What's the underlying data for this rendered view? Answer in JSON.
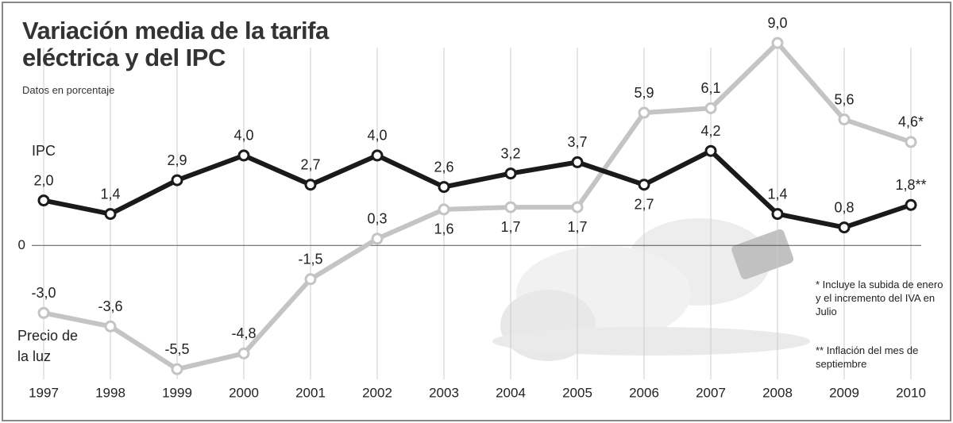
{
  "chart_data": {
    "type": "line",
    "title": "Variación media de la tarifa eléctrica y del IPC",
    "subtitle": "Datos en porcentaje",
    "categories": [
      "1997",
      "1998",
      "1999",
      "2000",
      "2001",
      "2002",
      "2003",
      "2004",
      "2005",
      "2006",
      "2007",
      "2008",
      "2009",
      "2010"
    ],
    "series": [
      {
        "name": "IPC",
        "color": "#1a1a1a",
        "values": [
          2.0,
          1.4,
          2.9,
          4.0,
          2.7,
          4.0,
          2.6,
          3.2,
          3.7,
          2.7,
          4.2,
          1.4,
          0.8,
          1.8
        ],
        "value_labels": [
          "2,0",
          "1,4",
          "2,9",
          "4,0",
          "2,7",
          "4,0",
          "2,6",
          "3,2",
          "3,7",
          "2,7",
          "4,2",
          "1,4",
          "0,8",
          "1,8**"
        ]
      },
      {
        "name": "Precio de la luz",
        "color": "#c4c4c4",
        "values": [
          -3.0,
          -3.6,
          -5.5,
          -4.8,
          -1.5,
          0.3,
          1.6,
          1.7,
          1.7,
          5.9,
          6.1,
          9.0,
          5.6,
          4.6
        ],
        "value_labels": [
          "-3,0",
          "-3,6",
          "-5,5",
          "-4,8",
          "-1,5",
          "0,3",
          "1,6",
          "1,7",
          "1,7",
          "5,9",
          "6,1",
          "9,0",
          "5,6",
          "4,6*"
        ]
      }
    ],
    "ylim": [
      -6.2,
      9.5
    ],
    "yticks": [
      0
    ],
    "notes": [
      "* Incluye la subida de enero y el incremento del IVA en Julio",
      "** Inflación del mes de septiembre"
    ]
  }
}
